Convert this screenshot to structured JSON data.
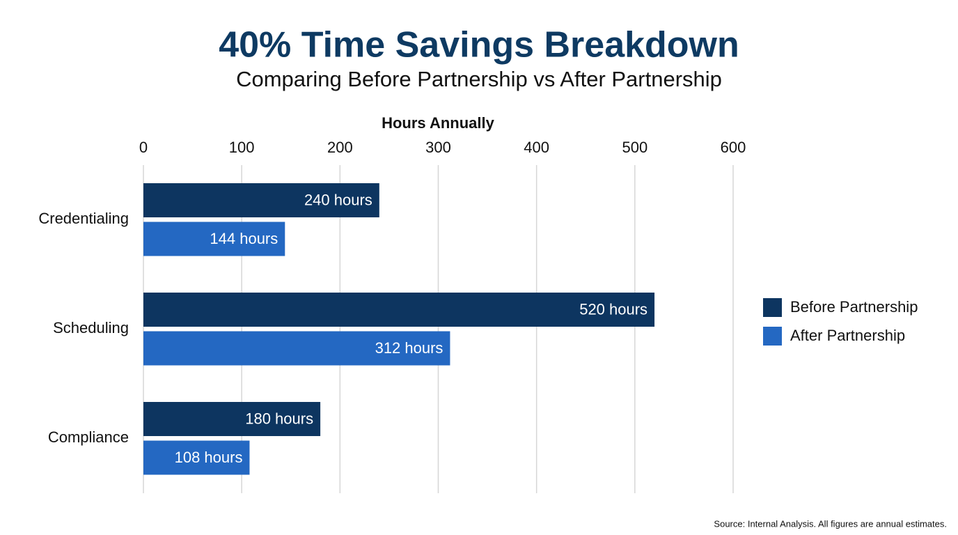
{
  "chart_data": {
    "type": "barh",
    "title": "40% Time Savings Breakdown",
    "subtitle": "Comparing Before Partnership vs After Partnership",
    "x_label": "Hours Annually",
    "categories": [
      "Credentialing",
      "Scheduling",
      "Compliance"
    ],
    "series": [
      {
        "name": "Before Partnership",
        "color": "#0d3560",
        "values": [
          240,
          520,
          180
        ],
        "value_labels": [
          "240 hours",
          "520 hours",
          "180 hours"
        ]
      },
      {
        "name": "After Partnership",
        "color": "#2468c2",
        "values": [
          144,
          312,
          108
        ],
        "value_labels": [
          "144 hours",
          "312 hours",
          "108 hours"
        ]
      }
    ],
    "xlim": [
      0,
      600
    ],
    "xticks": [
      0,
      100,
      200,
      300,
      400,
      500,
      600
    ],
    "grid": true,
    "legend": "right",
    "note": "Source: Internal Analysis. All figures are annual estimates."
  }
}
